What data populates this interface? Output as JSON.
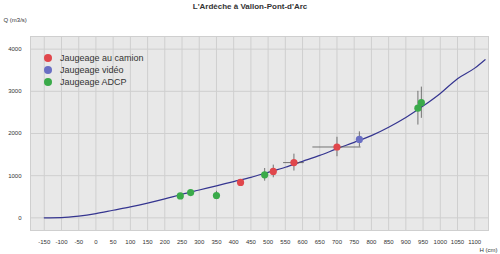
{
  "chart_data": {
    "type": "scatter",
    "title": "L'Ardèche à Vallon-Pont-d'Arc",
    "xlabel": "H (cm)",
    "ylabel": "Q (m3/s)",
    "xlim": [
      -190,
      1140
    ],
    "ylim": [
      -300,
      4300
    ],
    "xticks": [
      -150,
      -100,
      -50,
      0,
      50,
      100,
      150,
      200,
      250,
      300,
      350,
      400,
      450,
      500,
      550,
      600,
      650,
      700,
      750,
      800,
      850,
      900,
      950,
      1000,
      1050,
      1100
    ],
    "yticks": [
      0,
      1000,
      2000,
      3000,
      4000
    ],
    "grid": true,
    "legend": "top-left",
    "series": [
      {
        "type": "line",
        "color": "#353590",
        "x": [
          -150,
          -100,
          -50,
          0,
          50,
          100,
          150,
          200,
          250,
          300,
          350,
          400,
          450,
          500,
          550,
          600,
          650,
          700,
          750,
          800,
          850,
          900,
          950,
          1000,
          1050,
          1100,
          1130
        ],
        "values": [
          0,
          5,
          40,
          100,
          180,
          260,
          350,
          450,
          560,
          660,
          760,
          860,
          960,
          1080,
          1200,
          1340,
          1480,
          1640,
          1790,
          1950,
          2150,
          2380,
          2650,
          2950,
          3300,
          3550,
          3750
        ]
      },
      {
        "name": "Jaugeage au camion",
        "type": "scatter",
        "color": "#e0474c",
        "marker": "circle",
        "x": [
          420,
          515,
          575,
          700
        ],
        "values": [
          840,
          1100,
          1310,
          1680
        ],
        "xerr": [
          0,
          0,
          30,
          70
        ],
        "yerr": [
          0,
          150,
          200,
          230
        ]
      },
      {
        "name": "Jaugeage vidéo",
        "type": "scatter",
        "color": "#6a6fc4",
        "marker": "circle",
        "x": [
          765
        ],
        "values": [
          1860
        ],
        "xerr": [
          0
        ],
        "yerr": [
          180
        ]
      },
      {
        "name": "Jaugeage ADCP",
        "type": "scatter",
        "color": "#3aaa4a",
        "marker": "circle",
        "x": [
          245,
          275,
          350,
          490,
          935,
          945
        ],
        "values": [
          520,
          600,
          530,
          1020,
          2600,
          2730
        ],
        "xerr": [
          0,
          0,
          0,
          0,
          0,
          0
        ],
        "yerr": [
          0,
          0,
          100,
          150,
          400,
          370
        ]
      }
    ]
  }
}
